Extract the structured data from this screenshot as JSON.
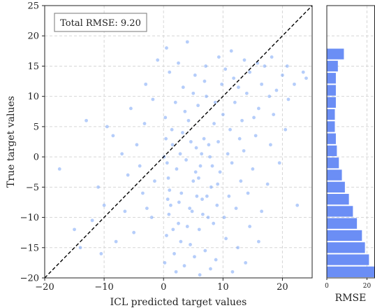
{
  "chart_data": [
    {
      "type": "scatter",
      "xlabel": "ICL predicted target values",
      "ylabel": "True target values",
      "xlim": [
        -20,
        25
      ],
      "ylim": [
        -20,
        25
      ],
      "xticks": [
        -20,
        -10,
        0,
        10,
        20
      ],
      "yticks": [
        -20,
        -15,
        -10,
        -5,
        0,
        5,
        10,
        15,
        20,
        25
      ],
      "grid": true,
      "reference_line": {
        "style": "dashed",
        "color": "#000000",
        "from": [
          -20,
          -20
        ],
        "to": [
          25,
          25
        ]
      },
      "annotation": "Total RMSE: 9.20",
      "point_color": "#6b9cf5",
      "series": [
        {
          "points": [
            [
              0.5,
              -13.0
            ],
            [
              1.2,
              -8.0
            ],
            [
              0.8,
              -3.5
            ],
            [
              1.5,
              2.0
            ],
            [
              0.3,
              6.5
            ],
            [
              2.5,
              -11.0
            ],
            [
              3.0,
              -6.0
            ],
            [
              2.8,
              0.5
            ],
            [
              3.2,
              4.0
            ],
            [
              2.0,
              9.0
            ],
            [
              4.5,
              -14.5
            ],
            [
              4.8,
              -9.0
            ],
            [
              5.0,
              -4.0
            ],
            [
              5.5,
              1.5
            ],
            [
              4.2,
              6.0
            ],
            [
              6.0,
              -12.0
            ],
            [
              6.5,
              -7.0
            ],
            [
              6.2,
              -1.5
            ],
            [
              6.8,
              3.0
            ],
            [
              5.8,
              8.5
            ],
            [
              7.5,
              -10.0
            ],
            [
              8.0,
              -5.0
            ],
            [
              7.8,
              0.0
            ],
            [
              8.5,
              5.5
            ],
            [
              7.2,
              10.0
            ],
            [
              9.0,
              -8.0
            ],
            [
              9.5,
              -2.5
            ],
            [
              9.2,
              2.5
            ],
            [
              10.0,
              7.0
            ],
            [
              9.8,
              12.0
            ],
            [
              11.0,
              -6.5
            ],
            [
              11.5,
              -1.0
            ],
            [
              11.2,
              4.5
            ],
            [
              12.0,
              9.0
            ],
            [
              11.8,
              13.0
            ],
            [
              13.0,
              -4.0
            ],
            [
              13.5,
              1.0
            ],
            [
              13.2,
              6.0
            ],
            [
              14.0,
              10.5
            ],
            [
              14.5,
              14.0
            ],
            [
              15.0,
              -2.0
            ],
            [
              15.5,
              3.5
            ],
            [
              16.0,
              8.0
            ],
            [
              16.5,
              12.0
            ],
            [
              17.0,
              15.0
            ],
            [
              18.0,
              2.0
            ],
            [
              18.5,
              7.0
            ],
            [
              19.0,
              11.0
            ],
            [
              20.0,
              13.5
            ],
            [
              21.0,
              9.5
            ],
            [
              -2.0,
              -10.0
            ],
            [
              -3.5,
              -6.0
            ],
            [
              -5.0,
              -12.5
            ],
            [
              -6.0,
              -3.0
            ],
            [
              -8.0,
              -14.0
            ],
            [
              -10.0,
              -8.0
            ],
            [
              -12.0,
              -10.5
            ],
            [
              -4.5,
              2.0
            ],
            [
              -7.0,
              0.5
            ],
            [
              -9.5,
              5.0
            ],
            [
              -14.0,
              -15.0
            ],
            [
              -17.5,
              -2.0
            ],
            [
              -13.0,
              6.0
            ],
            [
              -5.5,
              8.0
            ],
            [
              -3.0,
              12.0
            ],
            [
              -1.0,
              16.0
            ],
            [
              0.5,
              18.0
            ],
            [
              1.0,
              14.0
            ],
            [
              2.5,
              15.5
            ],
            [
              4.0,
              19.0
            ],
            [
              0.2,
              -17.5
            ],
            [
              1.8,
              -16.0
            ],
            [
              3.5,
              -18.0
            ],
            [
              5.2,
              -16.5
            ],
            [
              7.0,
              -15.5
            ],
            [
              8.8,
              -17.0
            ],
            [
              10.5,
              -13.5
            ],
            [
              12.5,
              -15.0
            ],
            [
              14.5,
              -11.5
            ],
            [
              16.5,
              -9.0
            ],
            [
              0.6,
              -1.0
            ],
            [
              1.0,
              -5.5
            ],
            [
              0.4,
              3.0
            ],
            [
              2.2,
              -2.0
            ],
            [
              3.8,
              -0.5
            ],
            [
              4.6,
              2.5
            ],
            [
              5.4,
              -2.5
            ],
            [
              6.4,
              0.5
            ],
            [
              7.6,
              2.0
            ],
            [
              8.2,
              -1.5
            ],
            [
              0.9,
              -9.5
            ],
            [
              2.6,
              -7.5
            ],
            [
              4.0,
              -11.5
            ],
            [
              5.6,
              -6.5
            ],
            [
              6.6,
              -9.5
            ],
            [
              8.4,
              -11.0
            ],
            [
              10.2,
              -10.0
            ],
            [
              12.2,
              -8.5
            ],
            [
              14.2,
              -6.0
            ],
            [
              17.5,
              -4.5
            ],
            [
              1.4,
              4.5
            ],
            [
              3.6,
              7.5
            ],
            [
              5.0,
              10.5
            ],
            [
              6.9,
              12.5
            ],
            [
              8.7,
              9.0
            ],
            [
              10.4,
              14.5
            ],
            [
              12.6,
              11.5
            ],
            [
              15.2,
              6.5
            ],
            [
              17.8,
              10.0
            ],
            [
              22.0,
              12.0
            ],
            [
              0.1,
              0.0
            ],
            [
              0.7,
              -7.0
            ],
            [
              1.6,
              -12.0
            ],
            [
              2.9,
              -14.0
            ],
            [
              4.4,
              -8.5
            ],
            [
              5.9,
              -3.5
            ],
            [
              7.3,
              -6.5
            ],
            [
              9.1,
              -4.5
            ],
            [
              10.8,
              0.5
            ],
            [
              12.8,
              3.0
            ],
            [
              -1.5,
              -4.0
            ],
            [
              -2.8,
              -8.5
            ],
            [
              -4.0,
              -1.5
            ],
            [
              -6.5,
              -9.0
            ],
            [
              -11.0,
              -5.0
            ],
            [
              -8.5,
              3.5
            ],
            [
              -15.0,
              -12.0
            ],
            [
              -10.5,
              -16.0
            ],
            [
              -3.2,
              5.5
            ],
            [
              -1.8,
              9.5
            ],
            [
              23.5,
              14.0
            ],
            [
              20.5,
              4.5
            ],
            [
              19.5,
              -1.0
            ],
            [
              22.5,
              -8.0
            ],
            [
              16.0,
              -14.0
            ],
            [
              13.8,
              -17.5
            ],
            [
              11.6,
              -19.0
            ],
            [
              7.9,
              -18.5
            ],
            [
              6.1,
              -19.5
            ],
            [
              2.1,
              -19.0
            ],
            [
              3.3,
              11.5
            ],
            [
              5.3,
              13.5
            ],
            [
              7.1,
              15.0
            ],
            [
              9.3,
              16.5
            ],
            [
              11.4,
              17.5
            ],
            [
              13.6,
              16.0
            ],
            [
              15.8,
              15.5
            ],
            [
              18.2,
              16.5
            ],
            [
              20.8,
              15.0
            ],
            [
              24.0,
              13.0
            ]
          ]
        }
      ]
    },
    {
      "type": "bar",
      "orientation": "horizontal",
      "xlabel": "RMSE",
      "xticks": [
        0,
        20
      ],
      "xlim": [
        0,
        24
      ],
      "bar_color": "#6b8ef5",
      "bins": [
        {
          "y_from": -20,
          "y_to": -18,
          "value": 24
        },
        {
          "y_from": -18,
          "y_to": -16,
          "value": 21
        },
        {
          "y_from": -16,
          "y_to": -14,
          "value": 19
        },
        {
          "y_from": -14,
          "y_to": -12,
          "value": 17.5
        },
        {
          "y_from": -12,
          "y_to": -10,
          "value": 15
        },
        {
          "y_from": -10,
          "y_to": -8,
          "value": 13
        },
        {
          "y_from": -8,
          "y_to": -6,
          "value": 11
        },
        {
          "y_from": -6,
          "y_to": -4,
          "value": 9
        },
        {
          "y_from": -4,
          "y_to": -2,
          "value": 7.5
        },
        {
          "y_from": -2,
          "y_to": 0,
          "value": 6
        },
        {
          "y_from": 0,
          "y_to": 2,
          "value": 5
        },
        {
          "y_from": 2,
          "y_to": 4,
          "value": 4.5
        },
        {
          "y_from": 4,
          "y_to": 6,
          "value": 4
        },
        {
          "y_from": 6,
          "y_to": 8,
          "value": 4
        },
        {
          "y_from": 8,
          "y_to": 10,
          "value": 4.5
        },
        {
          "y_from": 10,
          "y_to": 12,
          "value": 4.5
        },
        {
          "y_from": 12,
          "y_to": 14,
          "value": 4.5
        },
        {
          "y_from": 14,
          "y_to": 16,
          "value": 5.5
        },
        {
          "y_from": 16,
          "y_to": 18,
          "value": 8.5
        }
      ]
    }
  ]
}
